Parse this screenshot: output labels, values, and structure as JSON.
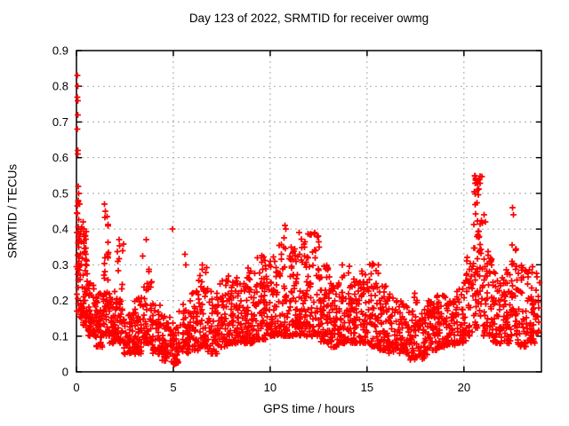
{
  "chart_data": {
    "type": "scatter",
    "title": "Day 123 of 2022, SRMTID for receiver owmg",
    "xlabel": "GPS time / hours",
    "ylabel": "SRMTID / TECUs",
    "xlim": [
      0,
      24
    ],
    "ylim": [
      0,
      0.9
    ],
    "x_ticks": [
      {
        "v": 0,
        "label": "0"
      },
      {
        "v": 5,
        "label": "5"
      },
      {
        "v": 10,
        "label": "10"
      },
      {
        "v": 15,
        "label": "15"
      },
      {
        "v": 20,
        "label": "20"
      }
    ],
    "y_ticks": [
      {
        "v": 0.0,
        "label": "0"
      },
      {
        "v": 0.1,
        "label": "0.1"
      },
      {
        "v": 0.2,
        "label": "0.2"
      },
      {
        "v": 0.3,
        "label": "0.3"
      },
      {
        "v": 0.4,
        "label": "0.4"
      },
      {
        "v": 0.5,
        "label": "0.5"
      },
      {
        "v": 0.6,
        "label": "0.6"
      },
      {
        "v": 0.7,
        "label": "0.7"
      },
      {
        "v": 0.8,
        "label": "0.8"
      },
      {
        "v": 0.9,
        "label": "0.9"
      }
    ],
    "grid": true,
    "grid_color": "#a8a8a8",
    "frame_color": "#000000",
    "marker": "plus",
    "marker_size": 7,
    "series": [
      {
        "name": "SRMTID",
        "color": "#ff0000",
        "outlier_points": [
          [
            0.05,
            0.83
          ],
          [
            0.07,
            0.8
          ],
          [
            0.05,
            0.77
          ],
          [
            0.08,
            0.76
          ],
          [
            0.06,
            0.72
          ],
          [
            0.05,
            0.68
          ],
          [
            0.07,
            0.62
          ],
          [
            0.06,
            0.61
          ],
          [
            0.1,
            0.52
          ],
          [
            0.12,
            0.5
          ],
          [
            0.09,
            0.48
          ],
          [
            0.15,
            0.47
          ],
          [
            0.35,
            0.42
          ],
          [
            0.4,
            0.4
          ],
          [
            0.45,
            0.38
          ],
          [
            0.38,
            0.36
          ],
          [
            1.45,
            0.47
          ],
          [
            1.5,
            0.45
          ],
          [
            2.2,
            0.37
          ],
          [
            3.6,
            0.37
          ],
          [
            4.95,
            0.4
          ],
          [
            5.6,
            0.33
          ],
          [
            5.65,
            0.3
          ],
          [
            6.5,
            0.3
          ],
          [
            10.75,
            0.41
          ],
          [
            10.8,
            0.4
          ],
          [
            11.5,
            0.39
          ],
          [
            12.3,
            0.39
          ],
          [
            12.45,
            0.38
          ],
          [
            20.55,
            0.55
          ],
          [
            20.6,
            0.54
          ],
          [
            20.65,
            0.53
          ],
          [
            20.7,
            0.51
          ],
          [
            21.05,
            0.44
          ],
          [
            21.1,
            0.42
          ],
          [
            22.5,
            0.46
          ],
          [
            22.55,
            0.44
          ],
          [
            23.9,
            0.25
          ]
        ],
        "density_bins": [
          [
            0.0,
            0.3,
            40,
            0.15,
            0.45,
            1.3
          ],
          [
            0.0,
            0.2,
            12,
            0.28,
            0.48,
            1.0
          ],
          [
            0.3,
            0.6,
            38,
            0.13,
            0.33,
            1.5
          ],
          [
            0.35,
            0.55,
            10,
            0.32,
            0.42,
            1.0
          ],
          [
            0.6,
            1.0,
            48,
            0.1,
            0.26,
            1.7
          ],
          [
            1.0,
            1.35,
            45,
            0.07,
            0.22,
            1.5
          ],
          [
            1.35,
            1.65,
            24,
            0.18,
            0.46,
            1.1
          ],
          [
            1.35,
            1.7,
            30,
            0.1,
            0.22,
            1.3
          ],
          [
            1.7,
            2.1,
            45,
            0.08,
            0.24,
            1.6
          ],
          [
            2.1,
            2.45,
            40,
            0.08,
            0.36,
            1.9
          ],
          [
            2.45,
            3.0,
            52,
            0.05,
            0.17,
            1.4
          ],
          [
            3.0,
            3.4,
            44,
            0.05,
            0.21,
            1.5
          ],
          [
            3.4,
            3.9,
            50,
            0.08,
            0.36,
            1.8
          ],
          [
            3.9,
            4.4,
            50,
            0.05,
            0.19,
            1.5
          ],
          [
            4.4,
            4.9,
            48,
            0.03,
            0.16,
            1.3
          ],
          [
            4.9,
            5.3,
            44,
            0.02,
            0.14,
            1.2
          ],
          [
            5.3,
            5.8,
            44,
            0.05,
            0.19,
            1.4
          ],
          [
            5.8,
            6.3,
            48,
            0.06,
            0.23,
            1.5
          ],
          [
            6.3,
            6.8,
            50,
            0.07,
            0.3,
            1.7
          ],
          [
            6.8,
            7.3,
            50,
            0.05,
            0.24,
            1.5
          ],
          [
            7.3,
            7.8,
            50,
            0.07,
            0.26,
            1.5
          ],
          [
            7.8,
            8.3,
            54,
            0.08,
            0.28,
            1.6
          ],
          [
            8.3,
            8.8,
            54,
            0.08,
            0.25,
            1.5
          ],
          [
            8.8,
            9.3,
            58,
            0.08,
            0.3,
            1.6
          ],
          [
            9.3,
            9.8,
            58,
            0.09,
            0.33,
            1.7
          ],
          [
            9.8,
            10.3,
            58,
            0.1,
            0.33,
            1.6
          ],
          [
            10.3,
            10.9,
            62,
            0.1,
            0.4,
            1.8
          ],
          [
            10.9,
            11.4,
            58,
            0.1,
            0.35,
            1.7
          ],
          [
            11.4,
            11.9,
            58,
            0.1,
            0.38,
            1.8
          ],
          [
            11.9,
            12.6,
            68,
            0.1,
            0.39,
            1.8
          ],
          [
            12.6,
            13.1,
            58,
            0.08,
            0.3,
            1.6
          ],
          [
            13.1,
            13.6,
            54,
            0.07,
            0.25,
            1.5
          ],
          [
            13.6,
            14.1,
            54,
            0.08,
            0.3,
            1.7
          ],
          [
            14.1,
            14.6,
            54,
            0.08,
            0.28,
            1.6
          ],
          [
            14.6,
            15.1,
            54,
            0.08,
            0.3,
            1.6
          ],
          [
            15.1,
            15.6,
            54,
            0.07,
            0.31,
            1.7
          ],
          [
            15.6,
            16.1,
            52,
            0.06,
            0.25,
            1.5
          ],
          [
            16.1,
            16.6,
            48,
            0.05,
            0.22,
            1.4
          ],
          [
            16.6,
            17.1,
            48,
            0.05,
            0.2,
            1.4
          ],
          [
            17.1,
            17.6,
            44,
            0.03,
            0.22,
            1.4
          ],
          [
            17.6,
            18.1,
            44,
            0.03,
            0.18,
            1.2
          ],
          [
            18.1,
            18.6,
            48,
            0.06,
            0.2,
            1.4
          ],
          [
            18.6,
            19.1,
            48,
            0.07,
            0.22,
            1.5
          ],
          [
            19.1,
            19.6,
            48,
            0.07,
            0.2,
            1.4
          ],
          [
            19.6,
            20.1,
            48,
            0.08,
            0.25,
            1.5
          ],
          [
            20.1,
            20.45,
            30,
            0.1,
            0.35,
            1.5
          ],
          [
            20.45,
            20.95,
            40,
            0.25,
            0.55,
            1.1
          ],
          [
            20.45,
            21.0,
            36,
            0.12,
            0.3,
            1.3
          ],
          [
            21.0,
            21.5,
            48,
            0.1,
            0.35,
            1.6
          ],
          [
            21.5,
            22.0,
            48,
            0.08,
            0.28,
            1.5
          ],
          [
            22.0,
            22.4,
            42,
            0.08,
            0.3,
            1.5
          ],
          [
            22.4,
            22.75,
            40,
            0.1,
            0.46,
            1.6
          ],
          [
            22.75,
            23.3,
            48,
            0.07,
            0.3,
            1.5
          ],
          [
            23.3,
            23.8,
            44,
            0.08,
            0.3,
            1.4
          ],
          [
            23.8,
            23.95,
            8,
            0.1,
            0.22,
            1.2
          ]
        ],
        "seed": 20220123
      }
    ]
  }
}
